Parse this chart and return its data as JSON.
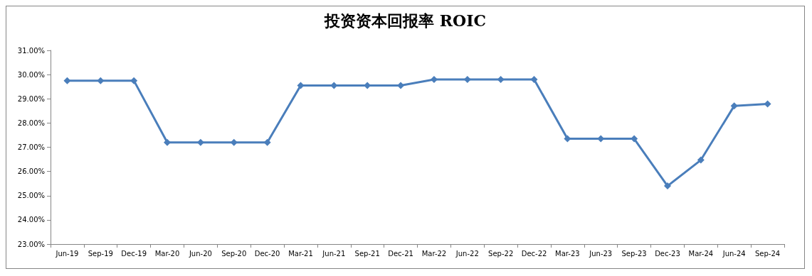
{
  "chart_data": {
    "type": "line",
    "title": "投资资本回报率 ROIC",
    "categories": [
      "Jun-19",
      "Sep-19",
      "Dec-19",
      "Mar-20",
      "Jun-20",
      "Sep-20",
      "Dec-20",
      "Mar-21",
      "Jun-21",
      "Sep-21",
      "Dec-21",
      "Mar-22",
      "Jun-22",
      "Sep-22",
      "Dec-22",
      "Mar-23",
      "Jun-23",
      "Sep-23",
      "Dec-23",
      "Mar-24",
      "Jun-24",
      "Sep-24"
    ],
    "series": [
      {
        "color": "#4a7ebb",
        "values": [
          29.75,
          29.75,
          29.75,
          27.2,
          27.2,
          27.2,
          27.2,
          29.55,
          29.55,
          29.55,
          29.55,
          29.8,
          29.8,
          29.8,
          29.8,
          27.35,
          27.35,
          27.35,
          25.4,
          26.47,
          28.71,
          28.79
        ]
      }
    ],
    "ylim": [
      23,
      31
    ],
    "yticks": [
      {
        "value": 23,
        "label": "23.00%"
      },
      {
        "value": 24,
        "label": "24.00%"
      },
      {
        "value": 25,
        "label": "25.00%"
      },
      {
        "value": 26,
        "label": "26.00%"
      },
      {
        "value": 27,
        "label": "27.00%"
      },
      {
        "value": 28,
        "label": "28.00%"
      },
      {
        "value": 29,
        "label": "29.00%"
      },
      {
        "value": 30,
        "label": "30.00%"
      },
      {
        "value": 31,
        "label": "31.00%"
      }
    ],
    "grid": false,
    "marker": "diamond",
    "line_style": "solid"
  }
}
